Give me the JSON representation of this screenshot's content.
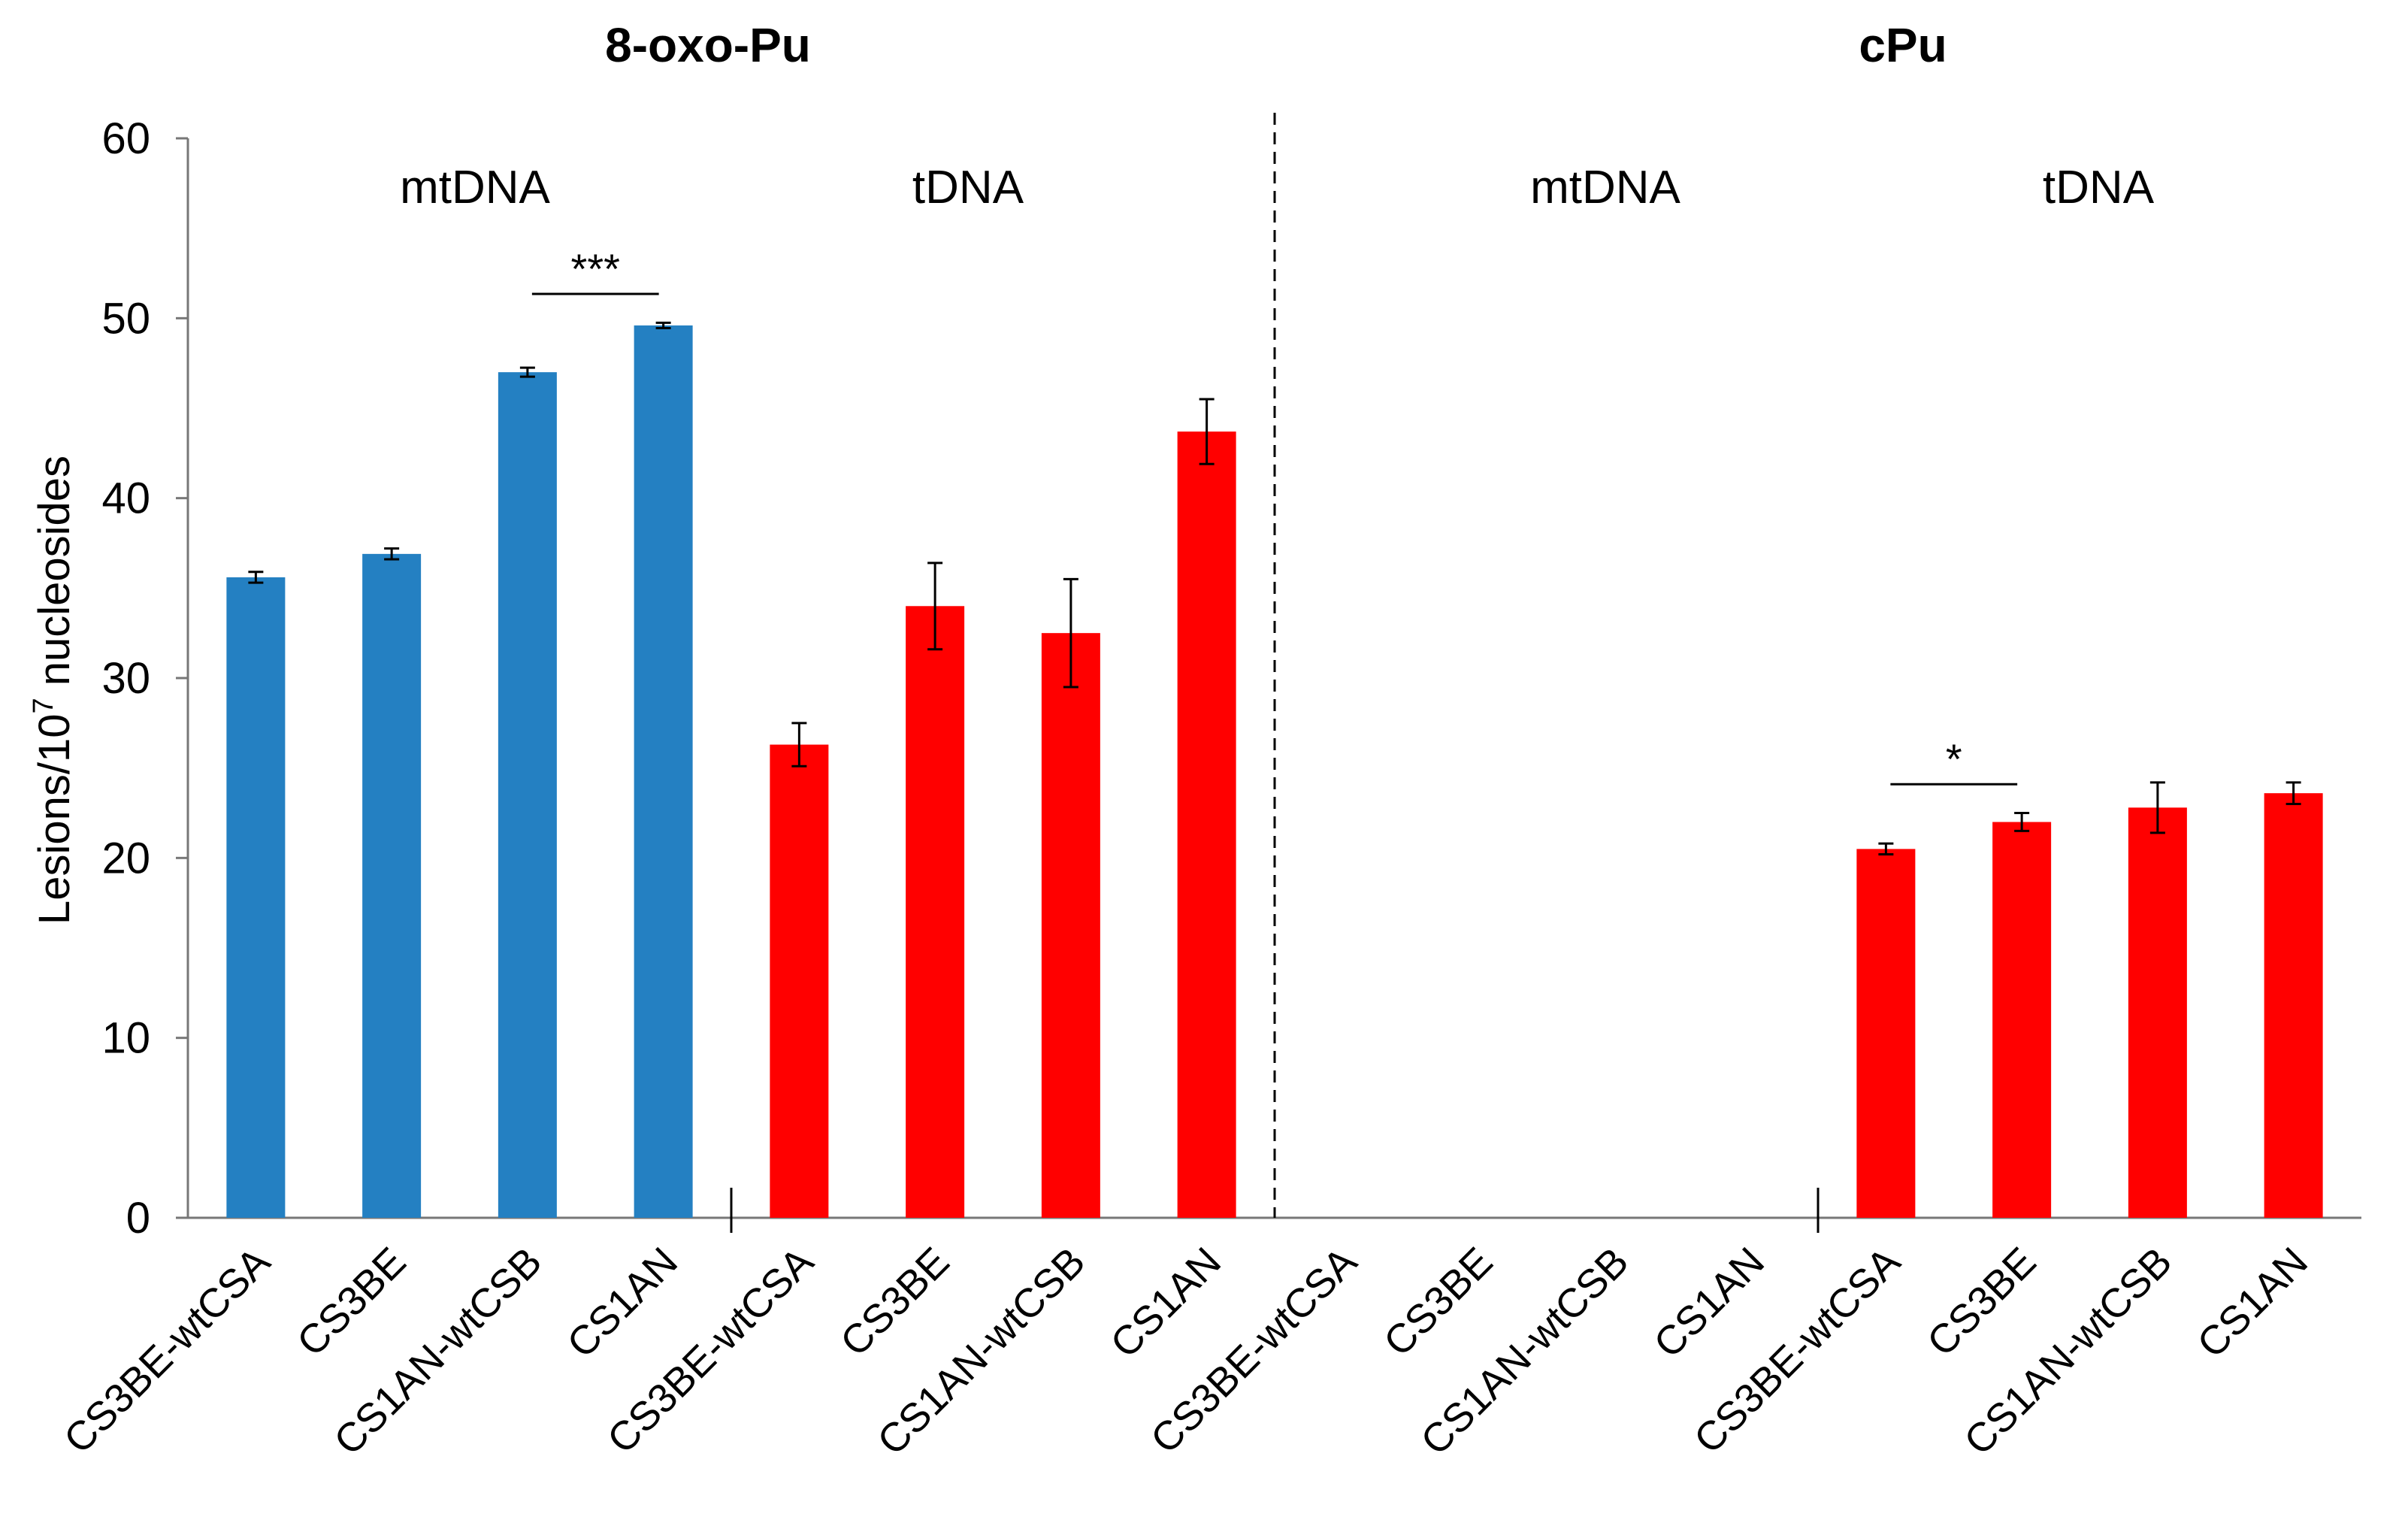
{
  "chart_data": {
    "type": "bar",
    "panels": [
      {
        "title": "8-oxo-Pu",
        "groups": [
          "mtDNA",
          "tDNA"
        ]
      },
      {
        "title": "cPu",
        "groups": [
          "mtDNA",
          "tDNA"
        ]
      }
    ],
    "ylabel": "Lesions/10",
    "ylabel_superscript": "7",
    "ylabel_suffix": " nucleosides",
    "ylim": [
      0,
      60
    ],
    "yticks": [
      0,
      10,
      20,
      30,
      40,
      50,
      60
    ],
    "categories": [
      "CS3BE-wtCSA",
      "CS3BE",
      "CS1AN-wtCSB",
      "CS1AN",
      "CS3BE-wtCSA",
      "CS3BE",
      "CS1AN-wtCSB",
      "CS1AN",
      "CS3BE-wtCSA",
      "CS3BE",
      "CS1AN-wtCSB",
      "CS1AN",
      "CS3BE-wtCSA",
      "CS3BE",
      "CS1AN-wtCSB",
      "CS1AN"
    ],
    "values": [
      35.6,
      36.9,
      47.0,
      49.6,
      26.3,
      34.0,
      32.5,
      43.7,
      null,
      null,
      null,
      null,
      20.5,
      22.0,
      22.8,
      23.6
    ],
    "errors": [
      0.3,
      0.3,
      0.25,
      0.15,
      1.2,
      2.4,
      3.0,
      1.8,
      null,
      null,
      null,
      null,
      0.3,
      0.5,
      1.4,
      0.6
    ],
    "colors": [
      "#2480C2",
      "#2480C2",
      "#2480C2",
      "#2480C2",
      "#FF0000",
      "#FF0000",
      "#FF0000",
      "#FF0000",
      "#2480C2",
      "#2480C2",
      "#2480C2",
      "#2480C2",
      "#FF0000",
      "#FF0000",
      "#FF0000",
      "#FF0000"
    ],
    "group_label_colors": {
      "mtDNA": "#1A4E8A",
      "tDNA": "#FF0000"
    },
    "significance": [
      {
        "from": 2,
        "to": 3,
        "label": "***"
      },
      {
        "from": 12,
        "to": 13,
        "label": "*"
      }
    ]
  }
}
